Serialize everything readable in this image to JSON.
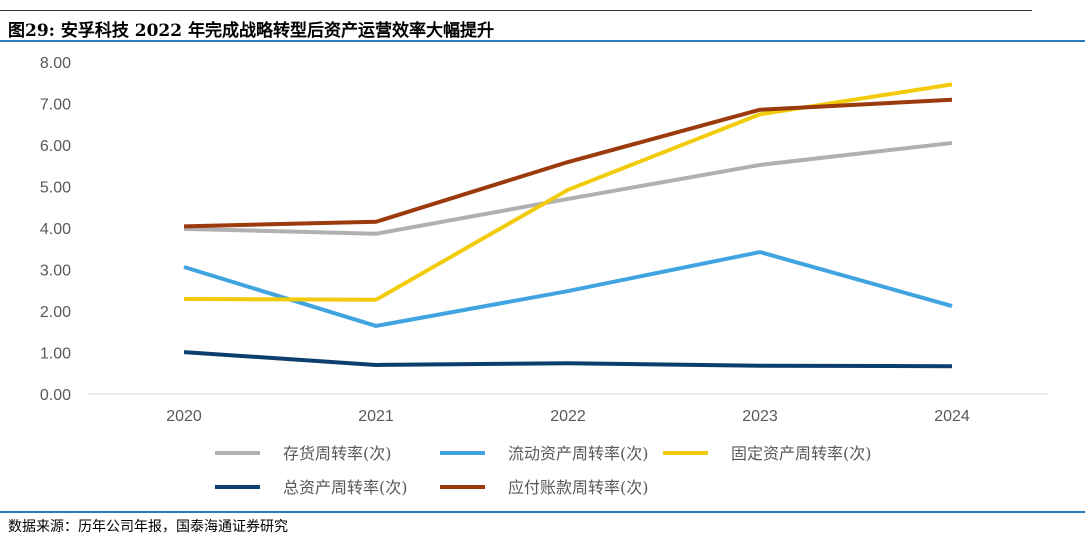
{
  "title": "图29:  安孚科技 2022 年完成战略转型后资产运营效率大幅提升",
  "source": "数据来源：历年公司年报，国泰海通证券研究",
  "chart_data": {
    "type": "line",
    "x": [
      "2020",
      "2021",
      "2022",
      "2023",
      "2024"
    ],
    "ylim": [
      0,
      8
    ],
    "yticks": [
      "0.00",
      "1.00",
      "2.00",
      "3.00",
      "4.00",
      "5.00",
      "6.00",
      "7.00",
      "8.00"
    ],
    "grid": false,
    "legend_position": "bottom",
    "series": [
      {
        "name": "存货周转率(次)",
        "color": "#b0b0b0",
        "values": [
          3.98,
          3.86,
          4.7,
          5.52,
          6.05
        ]
      },
      {
        "name": "流动资产周转率(次)",
        "color": "#41a4e0",
        "values": [
          3.06,
          1.64,
          2.48,
          3.42,
          2.12
        ]
      },
      {
        "name": "固定资产周转率(次)",
        "color": "#f2cc0c",
        "values": [
          2.29,
          2.27,
          4.92,
          6.74,
          7.46
        ]
      },
      {
        "name": "总资产周转率(次)",
        "color": "#0d3f6e",
        "values": [
          1.01,
          0.7,
          0.74,
          0.68,
          0.67
        ]
      },
      {
        "name": "应付账款周转率(次)",
        "color": "#9b3a0d",
        "values": [
          4.04,
          4.15,
          5.59,
          6.85,
          7.09
        ]
      }
    ]
  }
}
